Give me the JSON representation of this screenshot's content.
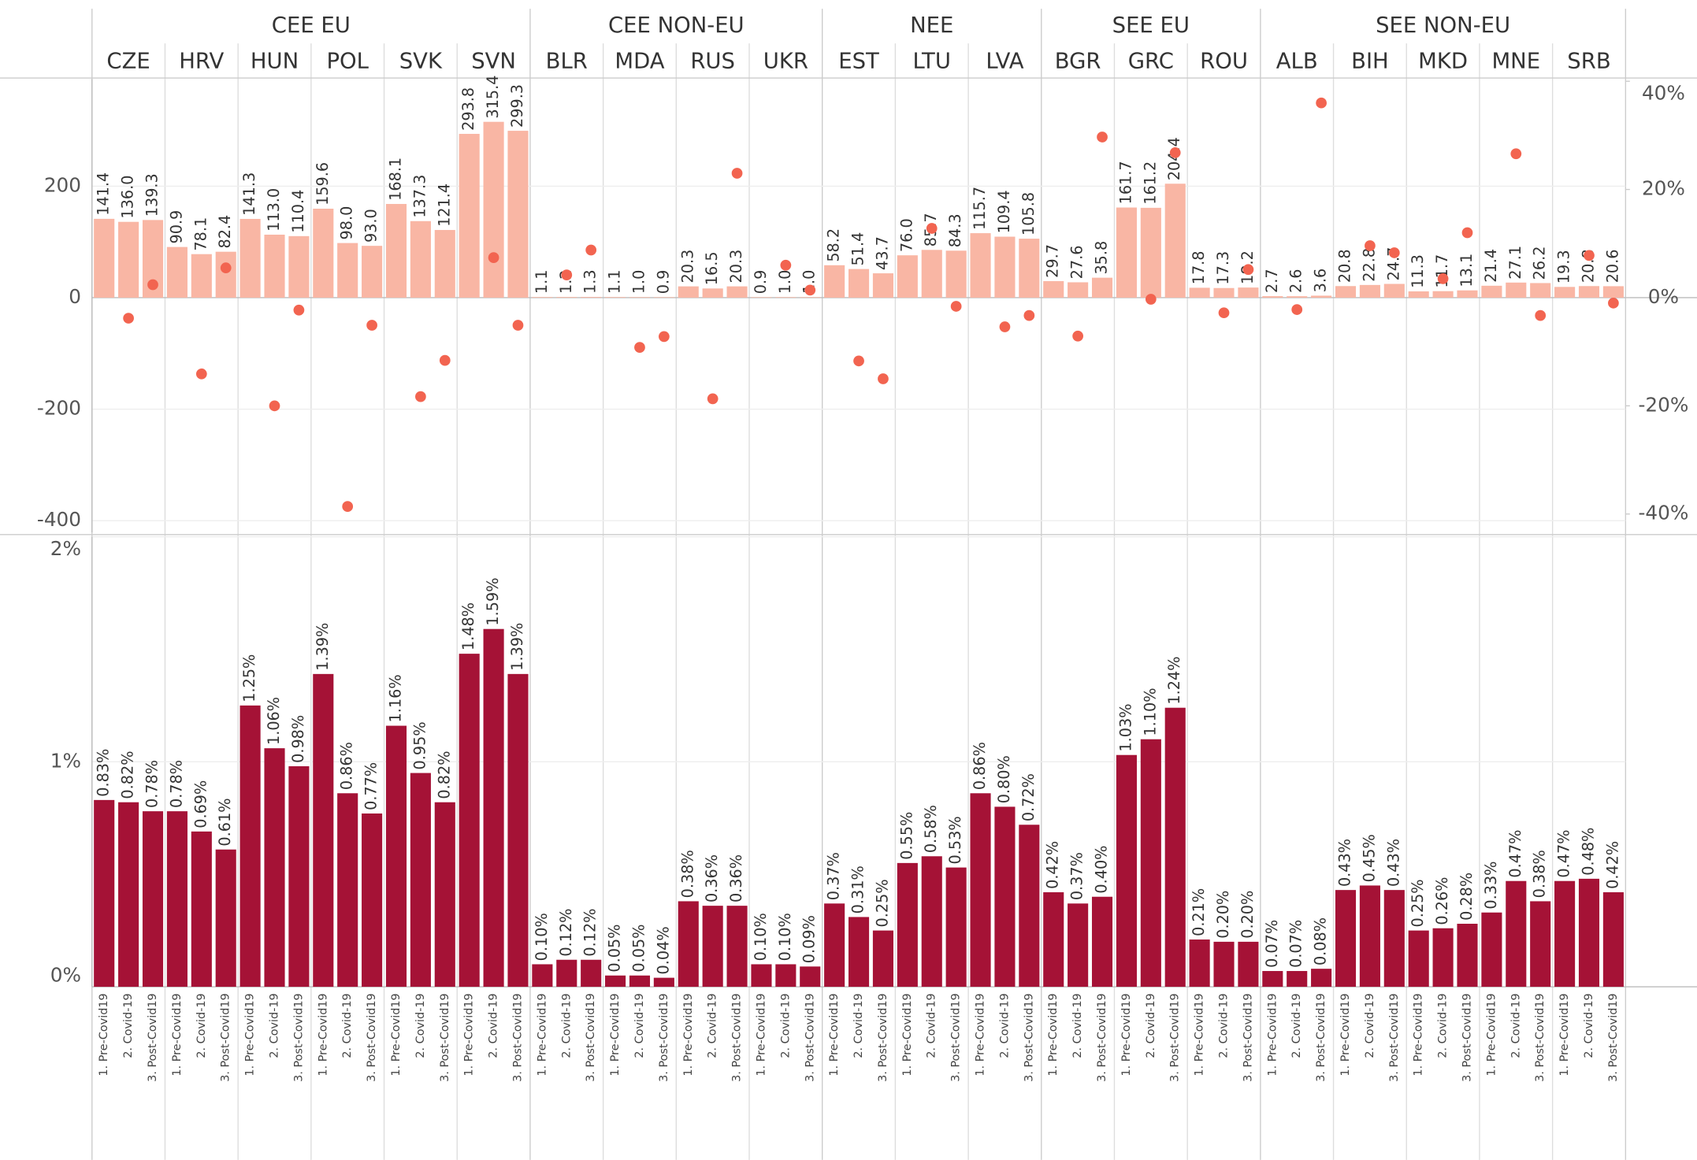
{
  "groups": [
    {
      "name": "CEE EU",
      "countries": [
        "CZE",
        "HRV",
        "HUN",
        "POL",
        "SVK",
        "SVN"
      ]
    },
    {
      "name": "CEE NON-EU",
      "countries": [
        "BLR",
        "MDA",
        "RUS",
        "UKR"
      ]
    },
    {
      "name": "NEE",
      "countries": [
        "EST",
        "LTU",
        "LVA"
      ]
    },
    {
      "name": "SEE EU",
      "countries": [
        "BGR",
        "GRC",
        "ROU"
      ]
    },
    {
      "name": "SEE NON-EU",
      "countries": [
        "ALB",
        "BIH",
        "MKD",
        "MNE",
        "SRB"
      ]
    }
  ],
  "periods": [
    "1. Pre-Covid19",
    "2. Covid-19",
    "3. Post-Covid19"
  ],
  "chart_data": [
    {
      "type": "bar",
      "ylim": [
        -421,
        392
      ],
      "yticks": [
        -400,
        -200,
        0,
        200
      ],
      "grid": true,
      "y2lim": [
        -43.4,
        40.4
      ],
      "y2ticks": [
        {
          "value": 40,
          "label": "40%"
        },
        {
          "value": 20,
          "label": "20%"
        },
        {
          "value": 0,
          "label": "0%"
        },
        {
          "value": -20,
          "label": "-20%"
        },
        {
          "value": -40,
          "label": "-40%"
        }
      ],
      "series": [
        {
          "color": "#f9b6a4",
          "values": [
            141.4,
            136.0,
            139.3,
            90.9,
            78.1,
            82.4,
            141.3,
            113.0,
            110.4,
            159.6,
            98.0,
            93.0,
            168.1,
            137.3,
            121.4,
            293.8,
            315.4,
            299.3,
            1.1,
            1.2,
            1.3,
            1.1,
            1.0,
            0.9,
            20.3,
            16.5,
            20.3,
            0.9,
            1.0,
            1.0,
            58.2,
            51.4,
            43.7,
            76.0,
            85.7,
            84.3,
            115.7,
            109.4,
            105.8,
            29.7,
            27.6,
            35.8,
            161.7,
            161.2,
            204.4,
            17.8,
            17.3,
            18.2,
            2.7,
            2.6,
            3.6,
            20.8,
            22.8,
            24.7,
            11.3,
            11.7,
            13.1,
            21.4,
            27.1,
            26.2,
            19.3,
            20.8,
            20.6
          ],
          "value_labels": [
            "141.4",
            "136.0",
            "139.3",
            "90.9",
            "78.1",
            "82.4",
            "141.3",
            "113.0",
            "110.4",
            "159.6",
            "98.0",
            "93.0",
            "168.1",
            "137.3",
            "121.4",
            "293.8",
            "315.4",
            "299.3",
            "1.1",
            "1.2",
            "1.3",
            "1.1",
            "1.0",
            "0.9",
            "20.3",
            "16.5",
            "20.3",
            "0.9",
            "1.0",
            "1.0",
            "58.2",
            "51.4",
            "43.7",
            "76.0",
            "85.7",
            "84.3",
            "115.7",
            "109.4",
            "105.8",
            "29.7",
            "27.6",
            "35.8",
            "161.7",
            "161.2",
            "204.4",
            "17.8",
            "17.3",
            "18.2",
            "2.7",
            "2.6",
            "3.6",
            "20.8",
            "22.8",
            "24.7",
            "11.3",
            "11.7",
            "13.1",
            "21.4",
            "27.1",
            "26.2",
            "19.3",
            "20.8",
            "20.6"
          ]
        },
        {
          "type": "dot",
          "axis": "y2",
          "color": "#f26450",
          "values": [
            null,
            -3.8,
            2.4,
            null,
            -14.1,
            5.5,
            null,
            -20.0,
            -2.3,
            null,
            -38.6,
            -5.1,
            null,
            -18.3,
            -11.6,
            null,
            7.4,
            -5.1,
            null,
            4.2,
            8.8,
            null,
            -9.2,
            -7.2,
            null,
            -18.7,
            23.0,
            null,
            6.0,
            1.4,
            null,
            -11.7,
            -15.0,
            null,
            12.8,
            -1.6,
            null,
            -5.4,
            -3.3,
            null,
            -7.1,
            29.7,
            null,
            -0.3,
            26.8,
            null,
            -2.8,
            5.2,
            null,
            -2.2,
            36.0,
            null,
            9.6,
            8.3,
            null,
            3.5,
            12.0,
            null,
            26.6,
            -3.3,
            null,
            7.8,
            -1.0
          ]
        }
      ]
    },
    {
      "type": "bar",
      "ylim": [
        0,
        2
      ],
      "yticks": [
        {
          "value": 0,
          "label": "0%"
        },
        {
          "value": 1,
          "label": "1%"
        },
        {
          "value": 2,
          "label": "2%"
        }
      ],
      "grid": true,
      "series": [
        {
          "color": "#a51236",
          "values": [
            0.83,
            0.82,
            0.78,
            0.78,
            0.69,
            0.61,
            1.25,
            1.06,
            0.98,
            1.39,
            0.86,
            0.77,
            1.16,
            0.95,
            0.82,
            1.48,
            1.59,
            1.39,
            0.1,
            0.12,
            0.12,
            0.05,
            0.05,
            0.04,
            0.38,
            0.36,
            0.36,
            0.1,
            0.1,
            0.09,
            0.37,
            0.31,
            0.25,
            0.55,
            0.58,
            0.53,
            0.86,
            0.8,
            0.72,
            0.42,
            0.37,
            0.4,
            1.03,
            1.1,
            1.24,
            0.21,
            0.2,
            0.2,
            0.07,
            0.07,
            0.08,
            0.43,
            0.45,
            0.43,
            0.25,
            0.26,
            0.28,
            0.33,
            0.47,
            0.38,
            0.47,
            0.48,
            0.42
          ],
          "value_labels": [
            "0.83%",
            "0.82%",
            "0.78%",
            "0.78%",
            "0.69%",
            "0.61%",
            "1.25%",
            "1.06%",
            "0.98%",
            "1.39%",
            "0.86%",
            "0.77%",
            "1.16%",
            "0.95%",
            "0.82%",
            "1.48%",
            "1.59%",
            "1.39%",
            "0.10%",
            "0.12%",
            "0.12%",
            "0.05%",
            "0.05%",
            "0.04%",
            "0.38%",
            "0.36%",
            "0.36%",
            "0.10%",
            "0.10%",
            "0.09%",
            "0.37%",
            "0.31%",
            "0.25%",
            "0.55%",
            "0.58%",
            "0.53%",
            "0.86%",
            "0.80%",
            "0.72%",
            "0.42%",
            "0.37%",
            "0.40%",
            "1.03%",
            "1.10%",
            "1.24%",
            "0.21%",
            "0.20%",
            "0.20%",
            "0.07%",
            "0.07%",
            "0.08%",
            "0.43%",
            "0.45%",
            "0.43%",
            "0.25%",
            "0.26%",
            "0.28%",
            "0.33%",
            "0.47%",
            "0.38%",
            "0.47%",
            "0.48%",
            "0.42%"
          ]
        }
      ]
    }
  ]
}
